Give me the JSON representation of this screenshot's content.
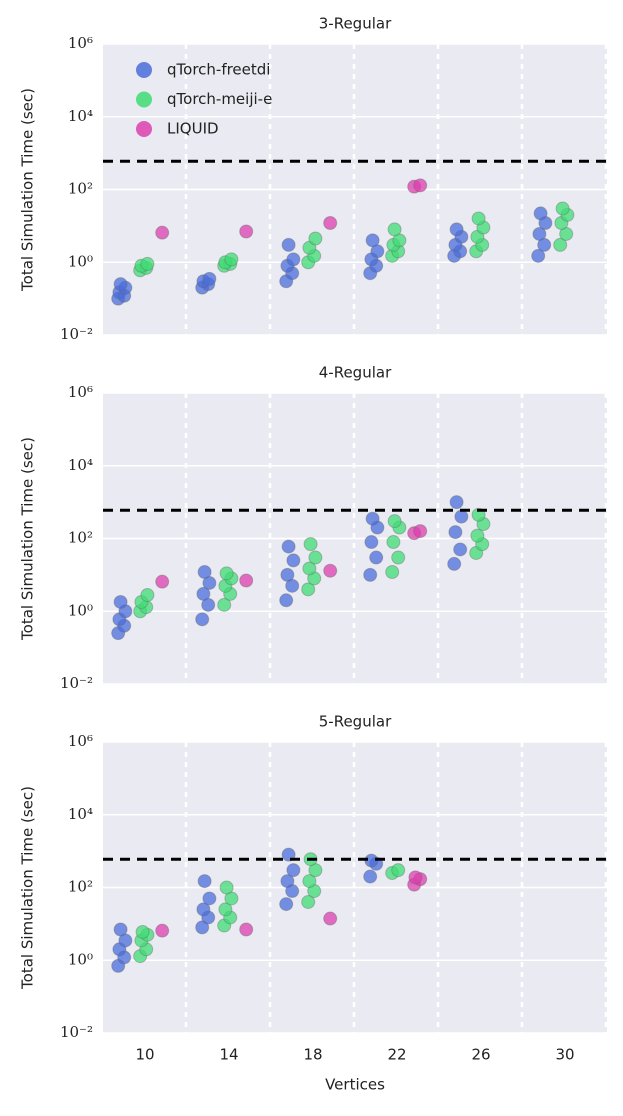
{
  "chart_data": [
    {
      "type": "strip",
      "title": "3-Regular",
      "ylabel": "Total Simulation Time (sec)",
      "log_y": true,
      "grid": true,
      "legend": "upper left",
      "ylim": [
        0.01,
        1000000
      ],
      "yticks": [
        {
          "value": 0.01,
          "label": "10⁻²"
        },
        {
          "value": 1,
          "label": "10⁰"
        },
        {
          "value": 100,
          "label": "10²"
        },
        {
          "value": 10000,
          "label": "10⁴"
        },
        {
          "value": 1000000,
          "label": "10⁶"
        }
      ],
      "hline": 600,
      "categories": [
        "10",
        "14",
        "18",
        "22",
        "26",
        "30"
      ],
      "series": [
        {
          "name": "qTorch-freetdi",
          "color": "#4a6ddb",
          "values": [
            [
              0.1,
              0.12,
              0.15,
              0.2,
              0.25
            ],
            [
              0.2,
              0.25,
              0.3,
              0.35
            ],
            [
              0.3,
              0.5,
              0.8,
              1.2,
              3
            ],
            [
              0.5,
              0.8,
              1.2,
              2,
              4
            ],
            [
              1.5,
              2,
              3,
              5,
              8
            ],
            [
              1.5,
              3,
              6,
              12,
              22
            ]
          ]
        },
        {
          "name": "qTorch-meiji-e",
          "color": "#3fdc74",
          "values": [
            [
              0.6,
              0.7,
              0.8,
              0.9
            ],
            [
              0.8,
              0.9,
              1,
              1.2
            ],
            [
              1,
              1.5,
              2.5,
              4.5
            ],
            [
              1.5,
              2,
              3,
              4,
              8
            ],
            [
              2,
              3,
              5,
              9,
              16
            ],
            [
              3,
              6,
              12,
              20,
              30
            ]
          ]
        },
        {
          "name": "LIQUID",
          "color": "#dc3fae",
          "values": [
            [
              6.5
            ],
            [
              7
            ],
            [
              12
            ],
            [
              120,
              130
            ],
            [],
            []
          ]
        }
      ]
    },
    {
      "type": "strip",
      "title": "4-Regular",
      "ylabel": "Total Simulation Time (sec)",
      "log_y": true,
      "grid": true,
      "ylim": [
        0.01,
        1000000
      ],
      "yticks": [
        {
          "value": 0.01,
          "label": "10⁻²"
        },
        {
          "value": 1,
          "label": "10⁰"
        },
        {
          "value": 100,
          "label": "10²"
        },
        {
          "value": 10000,
          "label": "10⁴"
        },
        {
          "value": 1000000,
          "label": "10⁶"
        }
      ],
      "hline": 600,
      "categories": [
        "10",
        "14",
        "18",
        "22",
        "26",
        "30"
      ],
      "series": [
        {
          "name": "qTorch-freetdi",
          "color": "#4a6ddb",
          "values": [
            [
              0.25,
              0.4,
              0.6,
              1,
              1.8
            ],
            [
              0.6,
              1.5,
              3,
              6,
              12
            ],
            [
              2,
              5,
              10,
              25,
              60
            ],
            [
              10,
              30,
              80,
              200,
              350
            ],
            [
              20,
              50,
              150,
              400,
              1000
            ],
            []
          ]
        },
        {
          "name": "qTorch-meiji-e",
          "color": "#3fdc74",
          "values": [
            [
              1,
              1.3,
              1.8,
              2.8
            ],
            [
              1.5,
              3,
              5,
              8,
              11
            ],
            [
              4,
              8,
              15,
              30,
              70
            ],
            [
              12,
              30,
              80,
              200,
              300
            ],
            [
              40,
              70,
              120,
              250,
              450
            ],
            []
          ]
        },
        {
          "name": "LIQUID",
          "color": "#dc3fae",
          "values": [
            [
              6.5
            ],
            [
              7
            ],
            [
              13
            ],
            [
              140,
              160
            ],
            [],
            []
          ]
        }
      ]
    },
    {
      "type": "strip",
      "title": "5-Regular",
      "ylabel": "Total Simulation Time (sec)",
      "xlabel": "Vertices",
      "log_y": true,
      "grid": true,
      "ylim": [
        0.01,
        1000000
      ],
      "yticks": [
        {
          "value": 0.01,
          "label": "10⁻²"
        },
        {
          "value": 1,
          "label": "10⁰"
        },
        {
          "value": 100,
          "label": "10²"
        },
        {
          "value": 10000,
          "label": "10⁴"
        },
        {
          "value": 1000000,
          "label": "10⁶"
        }
      ],
      "hline": 600,
      "categories": [
        "10",
        "14",
        "18",
        "22",
        "26",
        "30"
      ],
      "series": [
        {
          "name": "qTorch-freetdi",
          "color": "#4a6ddb",
          "values": [
            [
              0.7,
              1.2,
              2,
              3.5,
              7
            ],
            [
              8,
              15,
              25,
              50,
              150
            ],
            [
              35,
              80,
              150,
              300,
              800
            ],
            [
              200,
              450,
              550
            ],
            [],
            []
          ]
        },
        {
          "name": "qTorch-meiji-e",
          "color": "#3fdc74",
          "values": [
            [
              1.3,
              2,
              3.5,
              5,
              6
            ],
            [
              9,
              15,
              25,
              50,
              100
            ],
            [
              40,
              80,
              150,
              300,
              600
            ],
            [
              250,
              300
            ],
            [],
            []
          ]
        },
        {
          "name": "LIQUID",
          "color": "#dc3fae",
          "values": [
            [
              6.5
            ],
            [
              7
            ],
            [
              14
            ],
            [
              120,
              170,
              190
            ],
            [],
            []
          ]
        }
      ]
    }
  ]
}
